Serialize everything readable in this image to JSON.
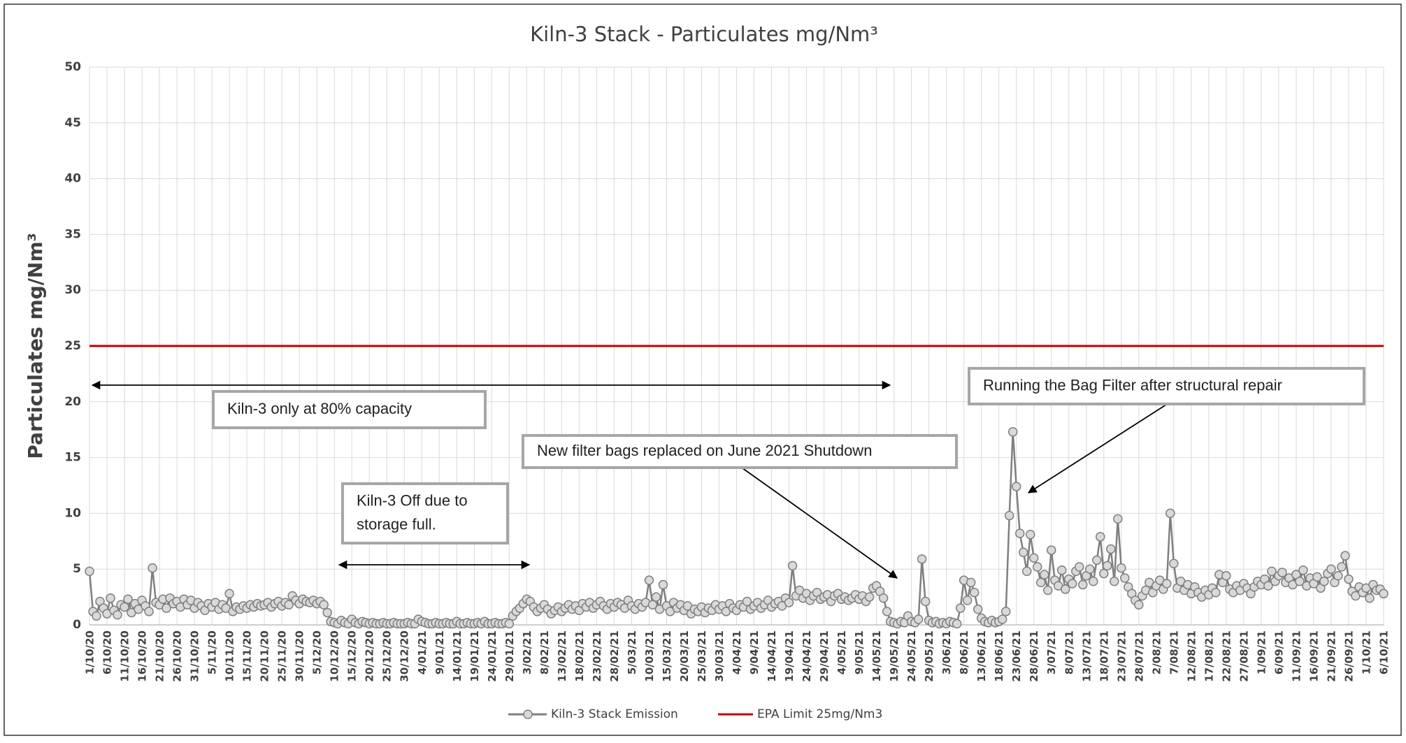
{
  "chart_data": {
    "type": "line",
    "title": "Kiln-3 Stack - Particulates mg/Nm³",
    "y_label": "Particulates mg/Nm³",
    "ylim": [
      0,
      50
    ],
    "yticks": [
      0,
      5,
      10,
      15,
      20,
      25,
      30,
      35,
      40,
      45,
      50
    ],
    "grid": true,
    "legend": "bottom",
    "categories": [
      "1/10/20",
      null,
      null,
      null,
      null,
      "6/10/20",
      null,
      null,
      null,
      null,
      "11/10/20",
      null,
      null,
      null,
      null,
      "16/10/20",
      null,
      null,
      null,
      null,
      "21/10/20",
      null,
      null,
      null,
      null,
      "26/10/20",
      null,
      null,
      null,
      null,
      "31/10/20",
      null,
      null,
      null,
      null,
      "5/11/20",
      null,
      null,
      null,
      null,
      "10/11/20",
      null,
      null,
      null,
      null,
      "15/11/20",
      null,
      null,
      null,
      null,
      "20/11/20",
      null,
      null,
      null,
      null,
      "25/11/20",
      null,
      null,
      null,
      null,
      "30/11/20",
      null,
      null,
      null,
      null,
      "5/12/20",
      null,
      null,
      null,
      null,
      "10/12/20",
      null,
      null,
      null,
      null,
      "15/12/20",
      null,
      null,
      null,
      null,
      "20/12/20",
      null,
      null,
      null,
      null,
      "25/12/20",
      null,
      null,
      null,
      null,
      "30/12/20",
      null,
      null,
      null,
      null,
      "4/01/21",
      null,
      null,
      null,
      null,
      "9/01/21",
      null,
      null,
      null,
      null,
      "14/01/21",
      null,
      null,
      null,
      null,
      "19/01/21",
      null,
      null,
      null,
      null,
      "24/01/21",
      null,
      null,
      null,
      null,
      "29/01/21",
      null,
      null,
      null,
      null,
      "3/02/21",
      null,
      null,
      null,
      null,
      "8/02/21",
      null,
      null,
      null,
      null,
      "13/02/21",
      null,
      null,
      null,
      null,
      "18/02/21",
      null,
      null,
      null,
      null,
      "23/02/21",
      null,
      null,
      null,
      null,
      "28/02/21",
      null,
      null,
      null,
      null,
      "5/03/21",
      null,
      null,
      null,
      null,
      "10/03/21",
      null,
      null,
      null,
      null,
      "15/03/21",
      null,
      null,
      null,
      null,
      "20/03/21",
      null,
      null,
      null,
      null,
      "25/03/21",
      null,
      null,
      null,
      null,
      "30/03/21",
      null,
      null,
      null,
      null,
      "4/04/21",
      null,
      null,
      null,
      null,
      "9/04/21",
      null,
      null,
      null,
      null,
      "14/04/21",
      null,
      null,
      null,
      null,
      "19/04/21",
      null,
      null,
      null,
      null,
      "24/04/21",
      null,
      null,
      null,
      null,
      "29/04/21",
      null,
      null,
      null,
      null,
      "4/05/21",
      null,
      null,
      null,
      null,
      "9/05/21",
      null,
      null,
      null,
      null,
      "14/05/21",
      null,
      null,
      null,
      null,
      "19/05/21",
      null,
      null,
      null,
      null,
      "24/05/21",
      null,
      null,
      null,
      null,
      "29/05/21",
      null,
      null,
      null,
      null,
      "3/06/21",
      null,
      null,
      null,
      null,
      "8/06/21",
      null,
      null,
      null,
      null,
      "13/06/21",
      null,
      null,
      null,
      null,
      "18/06/21",
      null,
      null,
      null,
      null,
      "23/06/21",
      null,
      null,
      null,
      null,
      "28/06/21",
      null,
      null,
      null,
      null,
      "3/07/21",
      null,
      null,
      null,
      null,
      "8/07/21",
      null,
      null,
      null,
      null,
      "13/07/21",
      null,
      null,
      null,
      null,
      "18/07/21",
      null,
      null,
      null,
      null,
      "23/07/21",
      null,
      null,
      null,
      null,
      "28/07/21",
      null,
      null,
      null,
      null,
      "2/08/21",
      null,
      null,
      null,
      null,
      "7/08/21",
      null,
      null,
      null,
      null,
      "12/08/21",
      null,
      null,
      null,
      null,
      "17/08/21",
      null,
      null,
      null,
      null,
      "22/08/21",
      null,
      null,
      null,
      null,
      "27/08/21",
      null,
      null,
      null,
      null,
      "1/09/21",
      null,
      null,
      null,
      null,
      "6/09/21",
      null,
      null,
      null,
      null,
      "11/09/21",
      null,
      null,
      null,
      null,
      "16/09/21",
      null,
      null,
      null,
      null,
      "21/09/21",
      null,
      null,
      null,
      null,
      "26/09/21",
      null,
      null,
      null,
      null,
      "1/10/21",
      null,
      null,
      null,
      null,
      "6/10/21"
    ],
    "series": [
      {
        "name": "Kiln-3 Stack Emission",
        "color": "#7f7f7f",
        "marker_fill": "#d9d9d9",
        "values": [
          4.8,
          1.2,
          0.8,
          2.1,
          1.5,
          1.0,
          2.4,
          1.3,
          0.9,
          1.8,
          1.6,
          2.3,
          1.1,
          1.9,
          1.4,
          2.2,
          1.7,
          1.2,
          5.1,
          2.0,
          1.8,
          2.3,
          1.5,
          2.4,
          1.9,
          2.1,
          1.6,
          2.3,
          1.8,
          2.2,
          1.5,
          2.0,
          1.7,
          1.3,
          1.9,
          1.6,
          2.0,
          1.4,
          1.8,
          1.5,
          2.8,
          1.2,
          1.6,
          1.4,
          1.7,
          1.5,
          1.8,
          1.6,
          1.9,
          1.7,
          1.8,
          2.0,
          1.6,
          1.9,
          2.1,
          1.7,
          2.0,
          1.8,
          2.6,
          2.2,
          1.9,
          2.3,
          2.1,
          2.0,
          2.2,
          1.9,
          2.1,
          1.8,
          1.1,
          0.3,
          0.2,
          0.1,
          0.4,
          0.2,
          0.1,
          0.5,
          0.2,
          0.1,
          0.3,
          0.2,
          0.1,
          0.2,
          0.1,
          0.1,
          0.2,
          0.1,
          0.1,
          0.2,
          0.1,
          0.1,
          0.1,
          0.2,
          0.1,
          0.1,
          0.5,
          0.3,
          0.2,
          0.1,
          0.1,
          0.2,
          0.1,
          0.1,
          0.2,
          0.1,
          0.1,
          0.3,
          0.1,
          0.1,
          0.2,
          0.1,
          0.1,
          0.2,
          0.1,
          0.3,
          0.1,
          0.1,
          0.2,
          0.1,
          0.1,
          0.2,
          0.1,
          0.8,
          1.2,
          1.5,
          1.9,
          2.3,
          2.1,
          1.6,
          1.2,
          1.5,
          1.8,
          1.4,
          1.0,
          1.3,
          1.6,
          1.2,
          1.5,
          1.8,
          1.4,
          1.7,
          1.3,
          1.9,
          1.6,
          2.0,
          1.5,
          1.8,
          2.1,
          1.7,
          1.4,
          1.9,
          1.6,
          2.0,
          1.8,
          1.5,
          2.2,
          1.7,
          1.4,
          1.9,
          1.6,
          2.0,
          4.0,
          1.8,
          2.5,
          1.4,
          3.6,
          1.7,
          1.2,
          2.0,
          1.5,
          1.8,
          1.3,
          1.7,
          1.0,
          1.4,
          1.2,
          1.6,
          1.1,
          1.5,
          1.3,
          1.8,
          1.4,
          1.7,
          1.2,
          1.9,
          1.5,
          1.3,
          1.8,
          1.6,
          2.1,
          1.4,
          1.7,
          2.0,
          1.5,
          1.8,
          2.2,
          1.6,
          1.9,
          2.1,
          1.7,
          2.4,
          2.0,
          5.3,
          2.6,
          3.1,
          2.4,
          2.8,
          2.2,
          2.6,
          2.9,
          2.3,
          2.5,
          2.7,
          2.1,
          2.6,
          2.8,
          2.3,
          2.5,
          2.2,
          2.4,
          2.7,
          2.3,
          2.6,
          2.1,
          2.5,
          3.3,
          3.5,
          3.0,
          2.4,
          1.2,
          0.3,
          0.2,
          0.1,
          0.3,
          0.2,
          0.8,
          0.3,
          0.2,
          0.5,
          5.9,
          2.1,
          0.4,
          0.2,
          0.3,
          0.1,
          0.2,
          0.1,
          0.3,
          0.2,
          0.1,
          1.5,
          4.0,
          2.2,
          3.8,
          2.9,
          1.4,
          0.6,
          0.3,
          0.2,
          0.4,
          0.2,
          0.3,
          0.5,
          1.2,
          9.8,
          17.3,
          12.4,
          8.2,
          6.5,
          4.8,
          8.1,
          6.0,
          5.2,
          3.8,
          4.5,
          3.1,
          6.7,
          4.0,
          3.5,
          4.9,
          3.2,
          4.1,
          3.7,
          4.8,
          5.2,
          3.6,
          4.4,
          5.0,
          3.9,
          5.8,
          7.9,
          4.6,
          5.3,
          6.8,
          3.9,
          9.5,
          5.1,
          4.2,
          3.4,
          2.8,
          2.2,
          1.8,
          2.6,
          3.1,
          3.8,
          2.9,
          3.5,
          4.0,
          3.2,
          3.7,
          10.0,
          5.5,
          3.3,
          3.9,
          3.1,
          3.6,
          2.8,
          3.4,
          2.9,
          2.5,
          3.1,
          2.7,
          3.3,
          2.9,
          4.5,
          3.8,
          4.4,
          3.2,
          2.9,
          3.5,
          3.1,
          3.7,
          3.3,
          2.8,
          3.4,
          3.9,
          3.6,
          4.1,
          3.5,
          4.8,
          3.9,
          4.4,
          4.7,
          3.8,
          4.2,
          3.6,
          4.5,
          3.9,
          4.9,
          3.5,
          4.2,
          3.7,
          4.3,
          3.3,
          3.9,
          4.6,
          5.0,
          3.8,
          4.4,
          5.2,
          6.2,
          4.1,
          3.0,
          2.6,
          3.4,
          2.9,
          3.3,
          2.4,
          3.6,
          3.1,
          3.2,
          2.8
        ]
      }
    ],
    "limit": {
      "name": "EPA Limit 25mg/Nm3",
      "value": 25,
      "color": "#c00000"
    },
    "annotations": [
      {
        "text": [
          "Kiln-3 only at 80% capacity"
        ]
      },
      {
        "text": [
          "Kiln-3 Off due to",
          "storage full."
        ]
      },
      {
        "text": [
          "New filter bags replaced on June 2021 Shutdown"
        ]
      },
      {
        "text": [
          "Running the Bag Filter after structural repair"
        ]
      }
    ]
  }
}
